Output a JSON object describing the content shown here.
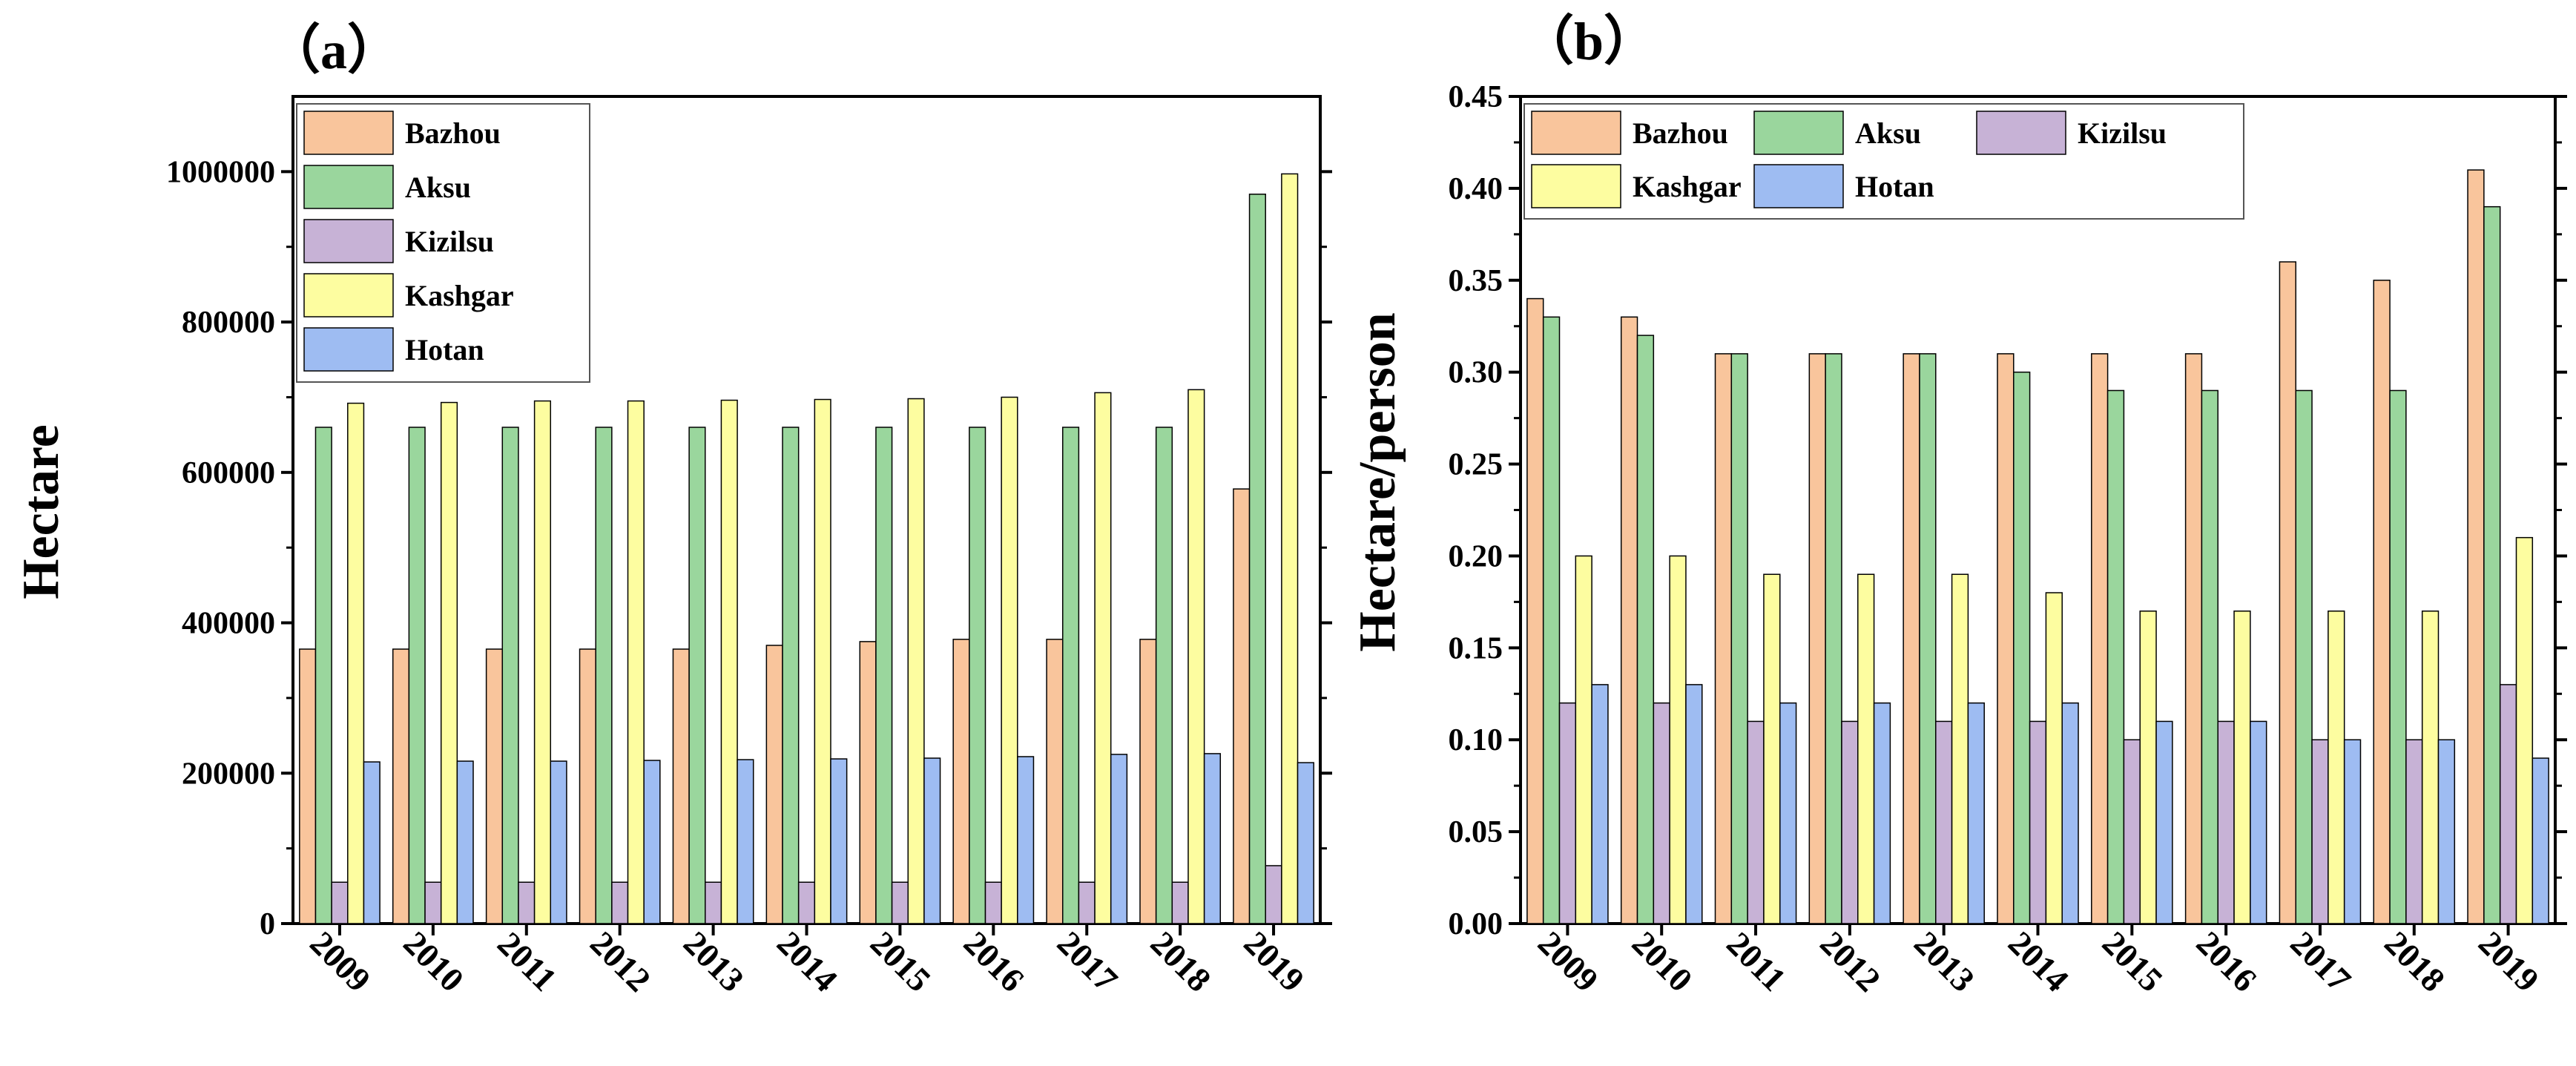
{
  "chart_data": [
    {
      "id": "a",
      "type": "bar",
      "panel_label": "（a）",
      "ylabel": "Hectare",
      "xlabel": "",
      "ylim": [
        0,
        1100000
      ],
      "yticks": [
        "0",
        "200000",
        "400000",
        "600000",
        "800000",
        "1000000"
      ],
      "ytick_values": [
        0,
        200000,
        400000,
        600000,
        800000,
        1000000
      ],
      "categories": [
        "2009",
        "2010",
        "2011",
        "2012",
        "2013",
        "2014",
        "2015",
        "2016",
        "2017",
        "2018",
        "2019"
      ],
      "legend_position": "top-left",
      "series": [
        {
          "name": "Bazhou",
          "color": "#f9c59c",
          "values": [
            365000,
            365000,
            365000,
            365000,
            365000,
            370000,
            375000,
            378000,
            378000,
            378000,
            578000
          ]
        },
        {
          "name": "Aksu",
          "color": "#9ad69d",
          "values": [
            660000,
            660000,
            660000,
            660000,
            660000,
            660000,
            660000,
            660000,
            660000,
            660000,
            970000
          ]
        },
        {
          "name": "Kizilsu",
          "color": "#c7b2d6",
          "values": [
            55000,
            55000,
            55000,
            55000,
            55000,
            55000,
            55000,
            55000,
            55000,
            55000,
            77000
          ]
        },
        {
          "name": "Kashgar",
          "color": "#fdfda0",
          "values": [
            692000,
            693000,
            695000,
            695000,
            696000,
            697000,
            698000,
            700000,
            706000,
            710000,
            997000
          ]
        },
        {
          "name": "Hotan",
          "color": "#9ebcf2",
          "values": [
            215000,
            216000,
            216000,
            217000,
            218000,
            219000,
            220000,
            222000,
            225000,
            226000,
            214000
          ]
        }
      ]
    },
    {
      "id": "b",
      "type": "bar",
      "panel_label": "（b）",
      "ylabel": "Hectare/person",
      "xlabel": "",
      "ylim": [
        0,
        0.45
      ],
      "yticks": [
        "0.00",
        "0.05",
        "0.10",
        "0.15",
        "0.20",
        "0.25",
        "0.30",
        "0.35",
        "0.40",
        "0.45"
      ],
      "ytick_values": [
        0,
        0.05,
        0.1,
        0.15,
        0.2,
        0.25,
        0.3,
        0.35,
        0.4,
        0.45
      ],
      "categories": [
        "2009",
        "2010",
        "2011",
        "2012",
        "2013",
        "2014",
        "2015",
        "2016",
        "2017",
        "2018",
        "2019"
      ],
      "legend_position": "top",
      "series": [
        {
          "name": "Bazhou",
          "color": "#f9c59c",
          "values": [
            0.34,
            0.33,
            0.31,
            0.31,
            0.31,
            0.31,
            0.31,
            0.31,
            0.36,
            0.35,
            0.41
          ]
        },
        {
          "name": "Aksu",
          "color": "#9ad69d",
          "values": [
            0.33,
            0.32,
            0.31,
            0.31,
            0.31,
            0.3,
            0.29,
            0.29,
            0.29,
            0.29,
            0.39
          ]
        },
        {
          "name": "Kizilsu",
          "color": "#c7b2d6",
          "values": [
            0.12,
            0.12,
            0.11,
            0.11,
            0.11,
            0.11,
            0.1,
            0.11,
            0.1,
            0.1,
            0.13
          ]
        },
        {
          "name": "Kashgar",
          "color": "#fdfda0",
          "values": [
            0.2,
            0.2,
            0.19,
            0.19,
            0.19,
            0.18,
            0.17,
            0.17,
            0.17,
            0.17,
            0.21
          ]
        },
        {
          "name": "Hotan",
          "color": "#9ebcf2",
          "values": [
            0.13,
            0.13,
            0.12,
            0.12,
            0.12,
            0.12,
            0.11,
            0.11,
            0.1,
            0.1,
            0.09
          ]
        }
      ]
    }
  ]
}
